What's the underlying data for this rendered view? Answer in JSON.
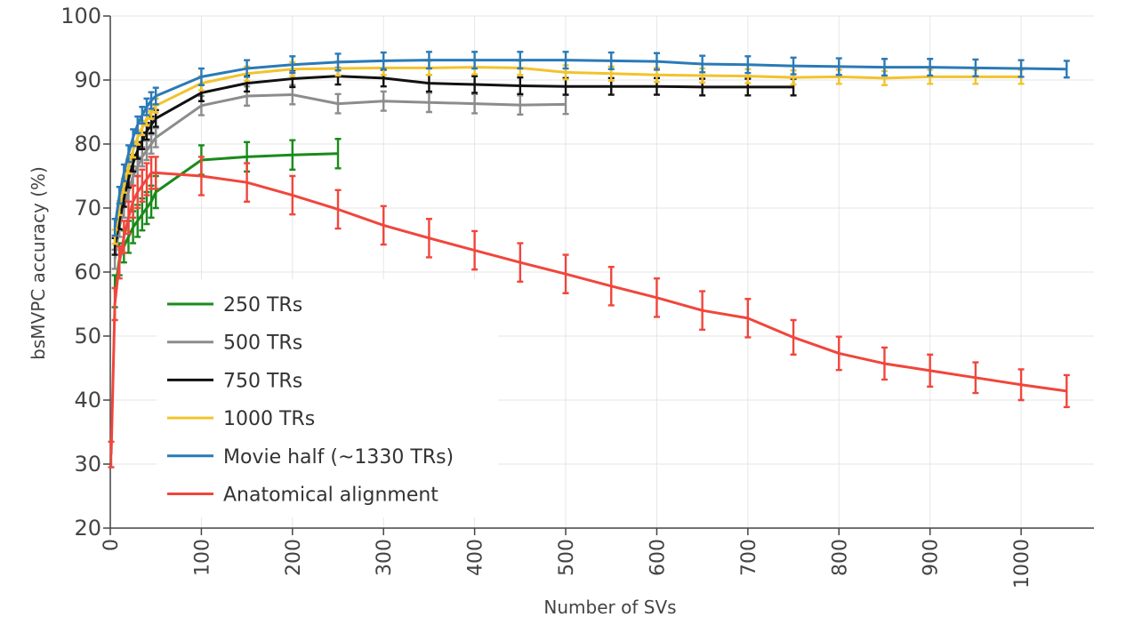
{
  "chart_data": {
    "type": "line",
    "title": "",
    "xlabel": "Number of SVs",
    "ylabel": "bsMVPC accuracy (%)",
    "xlim": [
      0,
      1080
    ],
    "ylim": [
      20,
      100
    ],
    "xticks": [
      0,
      100,
      200,
      300,
      400,
      500,
      600,
      700,
      800,
      900,
      1000
    ],
    "yticks": [
      20,
      30,
      40,
      50,
      60,
      70,
      80,
      90,
      100
    ],
    "grid": true,
    "legend_position": "left-center",
    "series": [
      {
        "name": "250 TRs",
        "color": "#1a8a1a",
        "x": [
          5,
          10,
          15,
          20,
          25,
          30,
          35,
          40,
          45,
          50,
          100,
          150,
          200,
          250
        ],
        "y": [
          57,
          62,
          64,
          65.5,
          67,
          68,
          69,
          70,
          71,
          72.5,
          77.5,
          78,
          78.3,
          78.5
        ],
        "err": [
          2.5,
          2.5,
          2.5,
          2.5,
          2.5,
          2.5,
          2.5,
          2.5,
          2.5,
          2.5,
          2.3,
          2.3,
          2.3,
          2.3
        ]
      },
      {
        "name": "500 TRs",
        "color": "#8c8c8c",
        "x": [
          5,
          10,
          15,
          20,
          25,
          30,
          35,
          40,
          45,
          50,
          100,
          150,
          200,
          250,
          300,
          350,
          400,
          450,
          500
        ],
        "y": [
          62,
          67,
          70,
          72.5,
          75,
          76.5,
          78,
          79,
          80,
          81,
          86,
          87.5,
          87.7,
          86.3,
          86.7,
          86.5,
          86.3,
          86.1,
          86.2
        ],
        "err": [
          1.5,
          1.5,
          1.5,
          1.5,
          1.5,
          1.5,
          1.5,
          1.5,
          1.5,
          1.5,
          1.5,
          1.5,
          1.5,
          1.5,
          1.5,
          1.5,
          1.5,
          1.5,
          1.5
        ]
      },
      {
        "name": "750 TRs",
        "color": "#111111",
        "x": [
          5,
          10,
          15,
          20,
          25,
          30,
          35,
          40,
          45,
          50,
          100,
          150,
          200,
          250,
          300,
          350,
          400,
          450,
          500,
          550,
          600,
          650,
          700,
          750
        ],
        "y": [
          64,
          68,
          71.5,
          74.5,
          77,
          79,
          80.5,
          82,
          83,
          84,
          88,
          89.5,
          90.2,
          90.6,
          90.3,
          89.5,
          89.3,
          89.1,
          89,
          89,
          89,
          88.9,
          88.9,
          88.9
        ],
        "err": [
          1.3,
          1.3,
          1.3,
          1.3,
          1.3,
          1.3,
          1.3,
          1.3,
          1.3,
          1.3,
          1.3,
          1.3,
          1.3,
          1.3,
          1.3,
          1.3,
          1.3,
          1.3,
          1.3,
          1.3,
          1.3,
          1.3,
          1.3,
          1.3
        ]
      },
      {
        "name": "1000 TRs",
        "color": "#f2c32c",
        "x": [
          5,
          10,
          15,
          20,
          25,
          30,
          35,
          40,
          45,
          50,
          100,
          150,
          200,
          250,
          300,
          350,
          400,
          450,
          500,
          550,
          600,
          650,
          700,
          750,
          800,
          850,
          900,
          950,
          1000
        ],
        "y": [
          65.5,
          70,
          73.5,
          76.5,
          79,
          81,
          82.5,
          84,
          85,
          86,
          89.5,
          91,
          91.7,
          91.8,
          91.9,
          91.9,
          92,
          91.9,
          91.2,
          91,
          90.8,
          90.7,
          90.6,
          90.4,
          90.5,
          90.3,
          90.5,
          90.5,
          90.5
        ],
        "err": [
          1.1,
          1.1,
          1.1,
          1.1,
          1.1,
          1.1,
          1.1,
          1.1,
          1.1,
          1.1,
          1.1,
          1.1,
          1.1,
          1.1,
          1.1,
          1.1,
          1.1,
          1.1,
          1.1,
          1.1,
          1.1,
          1.1,
          1.1,
          1.1,
          1.1,
          1.1,
          1.1,
          1.1,
          1.1
        ]
      },
      {
        "name": "Movie half (~1330 TRs)",
        "color": "#2a7ab8",
        "x": [
          5,
          10,
          15,
          20,
          25,
          30,
          35,
          40,
          45,
          50,
          100,
          150,
          200,
          250,
          300,
          350,
          400,
          450,
          500,
          550,
          600,
          650,
          700,
          750,
          800,
          850,
          900,
          950,
          1000,
          1050
        ],
        "y": [
          67,
          72,
          75.5,
          78.5,
          81,
          83,
          84.5,
          85.8,
          86.8,
          87.5,
          90.5,
          91.8,
          92.4,
          92.8,
          93,
          93.1,
          93.1,
          93.1,
          93.1,
          93,
          92.9,
          92.5,
          92.4,
          92.2,
          92.1,
          92,
          92,
          91.9,
          91.8,
          91.7
        ],
        "err": [
          1.3,
          1.3,
          1.3,
          1.3,
          1.3,
          1.3,
          1.3,
          1.3,
          1.3,
          1.3,
          1.3,
          1.3,
          1.3,
          1.3,
          1.3,
          1.3,
          1.3,
          1.3,
          1.3,
          1.3,
          1.3,
          1.3,
          1.3,
          1.3,
          1.3,
          1.3,
          1.3,
          1.3,
          1.3,
          1.3
        ]
      },
      {
        "name": "Anatomical alignment",
        "color": "#f0463c",
        "x": [
          1,
          5,
          10,
          15,
          20,
          25,
          30,
          35,
          40,
          45,
          50,
          100,
          150,
          200,
          250,
          300,
          350,
          400,
          450,
          500,
          550,
          600,
          650,
          700,
          750,
          800,
          850,
          900,
          950,
          1000,
          1050
        ],
        "y": [
          31.5,
          55,
          61.5,
          65.5,
          68.5,
          71,
          72.5,
          73.5,
          74.5,
          75.5,
          75.5,
          75,
          74,
          72,
          69.8,
          67.3,
          65.3,
          63.4,
          61.5,
          59.7,
          57.8,
          56,
          54,
          52.8,
          49.8,
          47.3,
          45.7,
          44.6,
          43.5,
          42.4,
          41.4
        ],
        "err": [
          2,
          2.5,
          2.5,
          2.5,
          2.5,
          2.5,
          2.5,
          2.5,
          2.5,
          2.5,
          2.5,
          3,
          3,
          3,
          3,
          3,
          3,
          3,
          3,
          3,
          3,
          3,
          3,
          3,
          2.7,
          2.6,
          2.5,
          2.5,
          2.4,
          2.4,
          2.5
        ]
      }
    ]
  }
}
